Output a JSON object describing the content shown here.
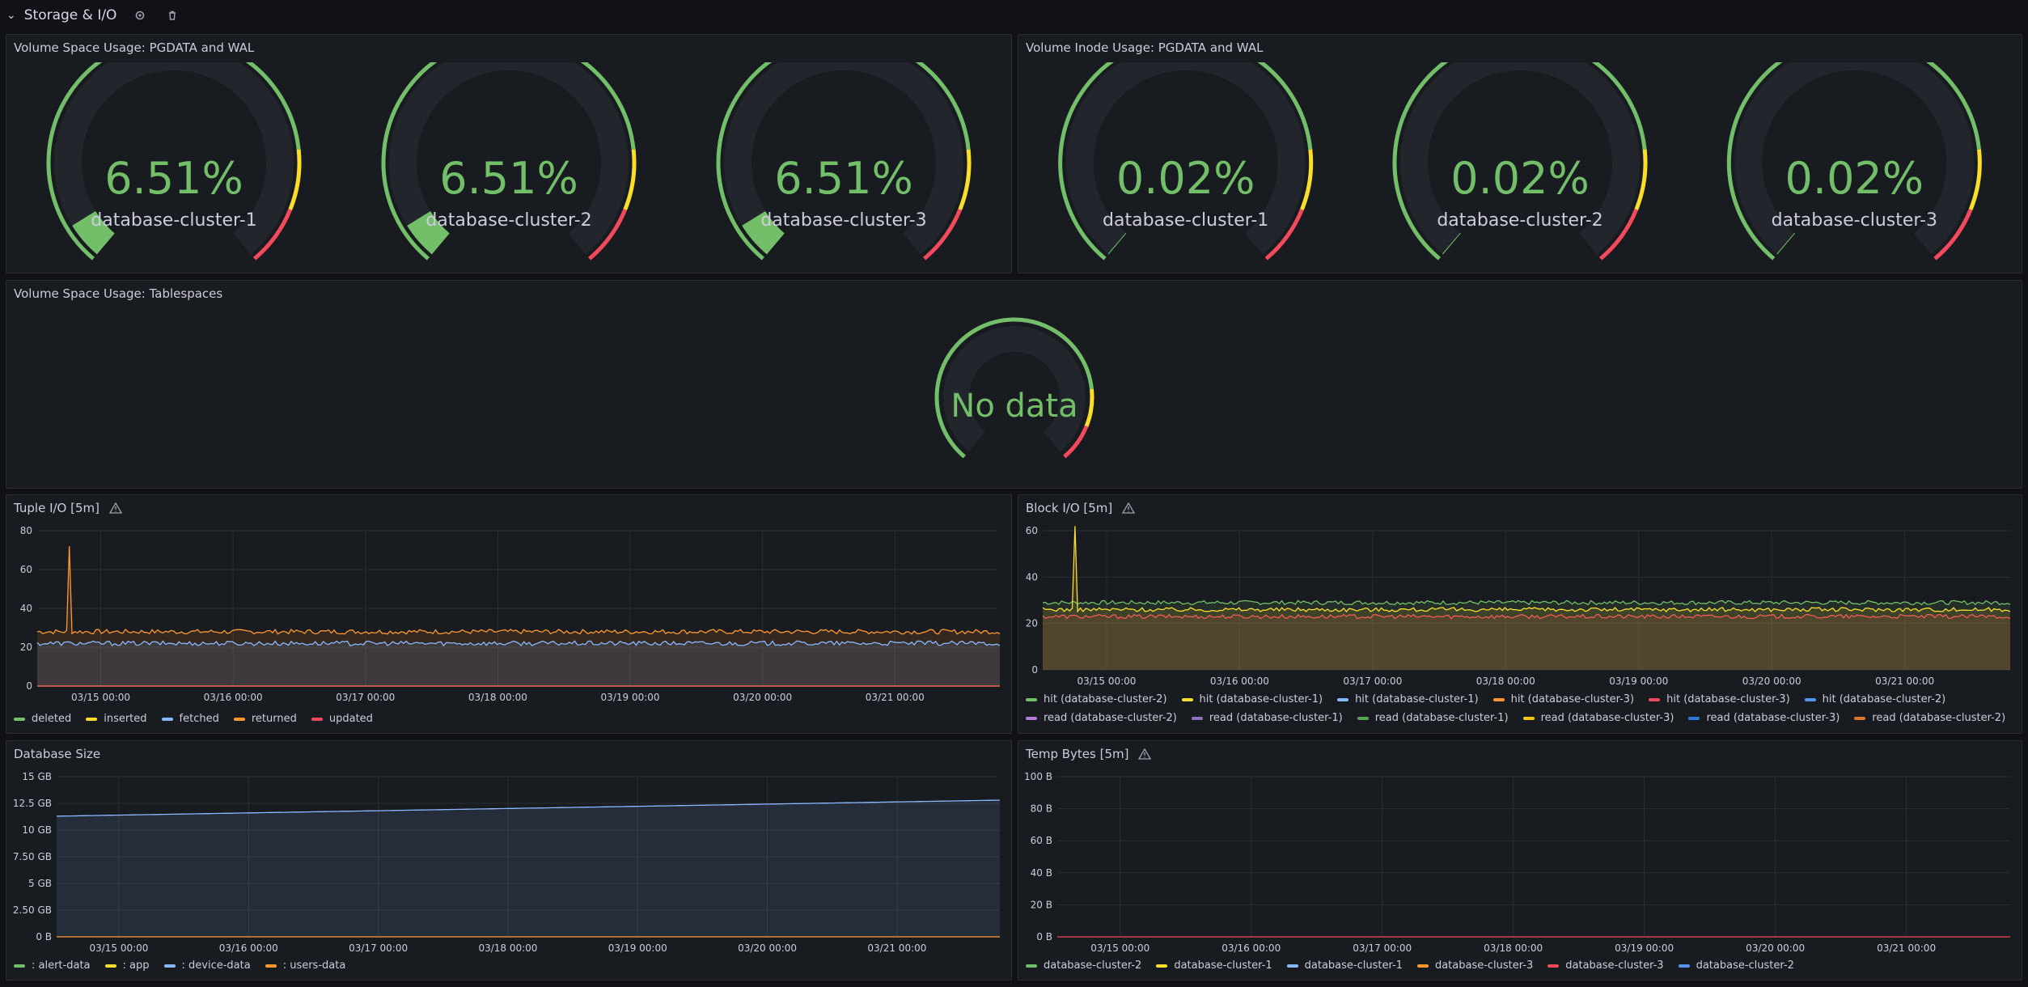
{
  "row": {
    "title": "Storage & I/O",
    "icons": [
      "chevron-down-icon",
      "gear-icon",
      "trash-icon"
    ]
  },
  "colors": {
    "green": "#73bf69",
    "yellow": "#fade2a",
    "orange": "#ff9830",
    "red": "#f2495c",
    "blue": "#8ab8ff",
    "purple": "#ca95e5"
  },
  "panels": {
    "space_pgdata": {
      "title": "Volume Space Usage: PGDATA and WAL",
      "gauges": [
        {
          "value": "6.51%",
          "pct": 6.51,
          "label": "database-cluster-1"
        },
        {
          "value": "6.51%",
          "pct": 6.51,
          "label": "database-cluster-2"
        },
        {
          "value": "6.51%",
          "pct": 6.51,
          "label": "database-cluster-3"
        }
      ]
    },
    "inode_pgdata": {
      "title": "Volume Inode Usage: PGDATA and WAL",
      "gauges": [
        {
          "value": "0.02%",
          "pct": 0.02,
          "label": "database-cluster-1"
        },
        {
          "value": "0.02%",
          "pct": 0.02,
          "label": "database-cluster-2"
        },
        {
          "value": "0.02%",
          "pct": 0.02,
          "label": "database-cluster-3"
        }
      ]
    },
    "tablespaces": {
      "title": "Volume Space Usage: Tablespaces",
      "no_data": "No data"
    },
    "tuple_io": {
      "title": "Tuple I/O [5m]",
      "legend": [
        {
          "label": "deleted",
          "color": "#73bf69"
        },
        {
          "label": "inserted",
          "color": "#fade2a"
        },
        {
          "label": "fetched",
          "color": "#8ab8ff"
        },
        {
          "label": "returned",
          "color": "#ff9830"
        },
        {
          "label": "updated",
          "color": "#f2495c"
        }
      ]
    },
    "block_io": {
      "title": "Block I/O [5m]",
      "legend": [
        {
          "label": "hit (database-cluster-2)",
          "color": "#73bf69"
        },
        {
          "label": "hit (database-cluster-1)",
          "color": "#fade2a"
        },
        {
          "label": "hit (database-cluster-1)",
          "color": "#8ab8ff"
        },
        {
          "label": "hit (database-cluster-3)",
          "color": "#ff9830"
        },
        {
          "label": "hit (database-cluster-3)",
          "color": "#f2495c"
        },
        {
          "label": "hit (database-cluster-2)",
          "color": "#5794f2"
        },
        {
          "label": "read (database-cluster-2)",
          "color": "#b877d9"
        },
        {
          "label": "read (database-cluster-1)",
          "color": "#8f6fc0"
        },
        {
          "label": "read (database-cluster-1)",
          "color": "#56a64b"
        },
        {
          "label": "read (database-cluster-3)",
          "color": "#f2cc0c"
        },
        {
          "label": "read (database-cluster-3)",
          "color": "#3274d9"
        },
        {
          "label": "read (database-cluster-2)",
          "color": "#e0752d"
        }
      ]
    },
    "db_size": {
      "title": "Database Size",
      "legend": [
        {
          "label": ": alert-data",
          "color": "#73bf69"
        },
        {
          "label": ": app",
          "color": "#fade2a"
        },
        {
          "label": ": device-data",
          "color": "#8ab8ff"
        },
        {
          "label": ": users-data",
          "color": "#ff9830"
        }
      ]
    },
    "temp_bytes": {
      "title": "Temp Bytes [5m]",
      "legend": [
        {
          "label": "database-cluster-2",
          "color": "#73bf69"
        },
        {
          "label": "database-cluster-1",
          "color": "#fade2a"
        },
        {
          "label": "database-cluster-1",
          "color": "#8ab8ff"
        },
        {
          "label": "database-cluster-3",
          "color": "#ff9830"
        },
        {
          "label": "database-cluster-3",
          "color": "#f2495c"
        },
        {
          "label": "database-cluster-2",
          "color": "#5794f2"
        }
      ]
    }
  },
  "chart_data": [
    {
      "type": "line",
      "title": "Tuple I/O [5m]",
      "x_ticks": [
        "03/15 00:00",
        "03/16 00:00",
        "03/17 00:00",
        "03/18 00:00",
        "03/19 00:00",
        "03/20 00:00",
        "03/21 00:00"
      ],
      "ylim": [
        0,
        80
      ],
      "y_ticks": [
        "0",
        "20",
        "40",
        "60",
        "80"
      ],
      "series": [
        {
          "name": "returned",
          "level": 28,
          "spike": 72
        },
        {
          "name": "fetched",
          "level": 22
        },
        {
          "name": "deleted",
          "level": 0
        },
        {
          "name": "inserted",
          "level": 0
        },
        {
          "name": "updated",
          "level": 0
        }
      ]
    },
    {
      "type": "line",
      "title": "Block I/O [5m]",
      "x_ticks": [
        "03/15 00:00",
        "03/16 00:00",
        "03/17 00:00",
        "03/18 00:00",
        "03/19 00:00",
        "03/20 00:00",
        "03/21 00:00"
      ],
      "ylim": [
        0,
        60
      ],
      "y_ticks": [
        "0",
        "20",
        "40",
        "60"
      ],
      "series": [
        {
          "name": "hit (database-cluster-2)",
          "level": 29
        },
        {
          "name": "hit (database-cluster-3)",
          "level": 23
        },
        {
          "name": "hit (database-cluster-1)",
          "level": 26,
          "spike": 62
        }
      ]
    },
    {
      "type": "area",
      "title": "Database Size",
      "x_ticks": [
        "03/15 00:00",
        "03/16 00:00",
        "03/17 00:00",
        "03/18 00:00",
        "03/19 00:00",
        "03/20 00:00",
        "03/21 00:00"
      ],
      "ylim": [
        0,
        15
      ],
      "y_ticks": [
        "0 B",
        "2.50 GB",
        "5 GB",
        "7.50 GB",
        "10 GB",
        "12.5 GB",
        "15 GB"
      ],
      "series": [
        {
          "name": ": device-data",
          "start": 11.3,
          "end": 12.8
        },
        {
          "name": ": users-data",
          "start": 0,
          "end": 0
        }
      ]
    },
    {
      "type": "line",
      "title": "Temp Bytes [5m]",
      "x_ticks": [
        "03/15 00:00",
        "03/16 00:00",
        "03/17 00:00",
        "03/18 00:00",
        "03/19 00:00",
        "03/20 00:00",
        "03/21 00:00"
      ],
      "ylim": [
        0,
        100
      ],
      "y_ticks": [
        "0 B",
        "20 B",
        "40 B",
        "60 B",
        "80 B",
        "100 B"
      ],
      "series": [
        {
          "name": "database-cluster-3",
          "level": 0
        }
      ]
    }
  ]
}
